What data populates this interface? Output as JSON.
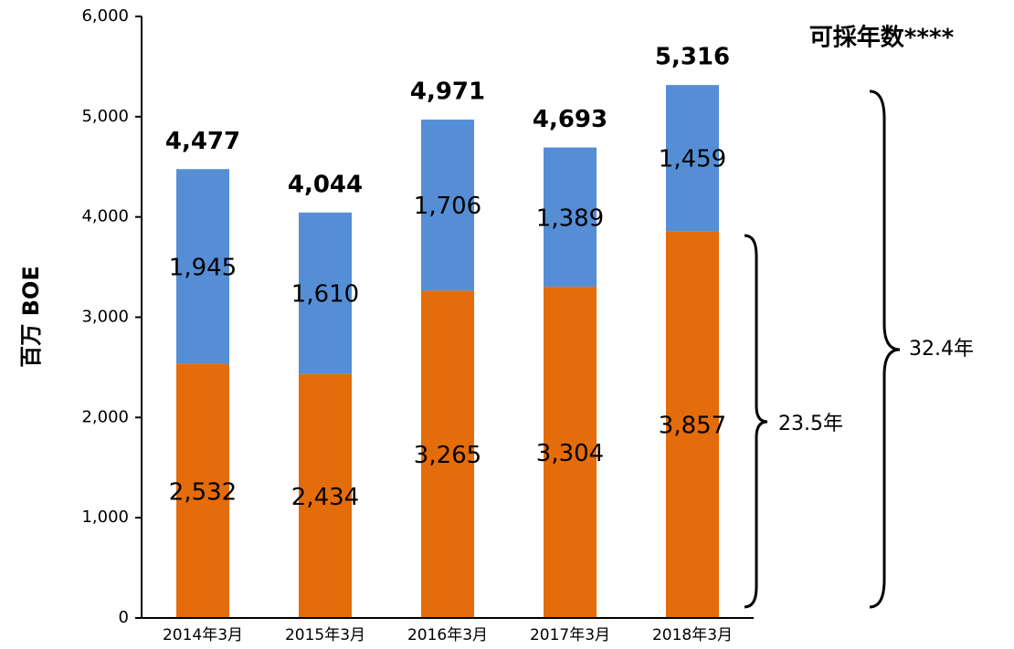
{
  "chart_data": {
    "type": "stacked_bar",
    "categories": [
      "2014年3月",
      "2015年3月",
      "2016年3月",
      "2017年3月",
      "2018年3月"
    ],
    "series": [
      {
        "color": "#e46c0a",
        "values": [
          2532,
          2434,
          3265,
          3304,
          3857
        ],
        "value_labels": [
          "2,532",
          "2,434",
          "3,265",
          "3,304",
          "3,857"
        ]
      },
      {
        "color": "#558ed5",
        "values": [
          1945,
          1610,
          1706,
          1389,
          1459
        ],
        "value_labels": [
          "1,945",
          "1,610",
          "1,706",
          "1,389",
          "1,459"
        ]
      }
    ],
    "totals": [
      4477,
      4044,
      4971,
      4693,
      5316
    ],
    "total_labels": [
      "4,477",
      "4,044",
      "4,971",
      "4,693",
      "5,316"
    ],
    "y_label": "百万 BOE",
    "ylim": [
      0,
      6000
    ],
    "yticks": [
      0,
      {
        "value": 1000,
        "label": "1,000"
      },
      {
        "value": 2000,
        "label": "2,000"
      },
      {
        "value": 3000,
        "label": "3,000"
      },
      {
        "value": 4000,
        "label": "4,000"
      },
      {
        "value": 5000,
        "label": "5,000"
      },
      {
        "value": 6000,
        "label": "6,000"
      }
    ],
    "annotations": [
      "可採年数****",
      "32.4年",
      "23.5年"
    ]
  }
}
